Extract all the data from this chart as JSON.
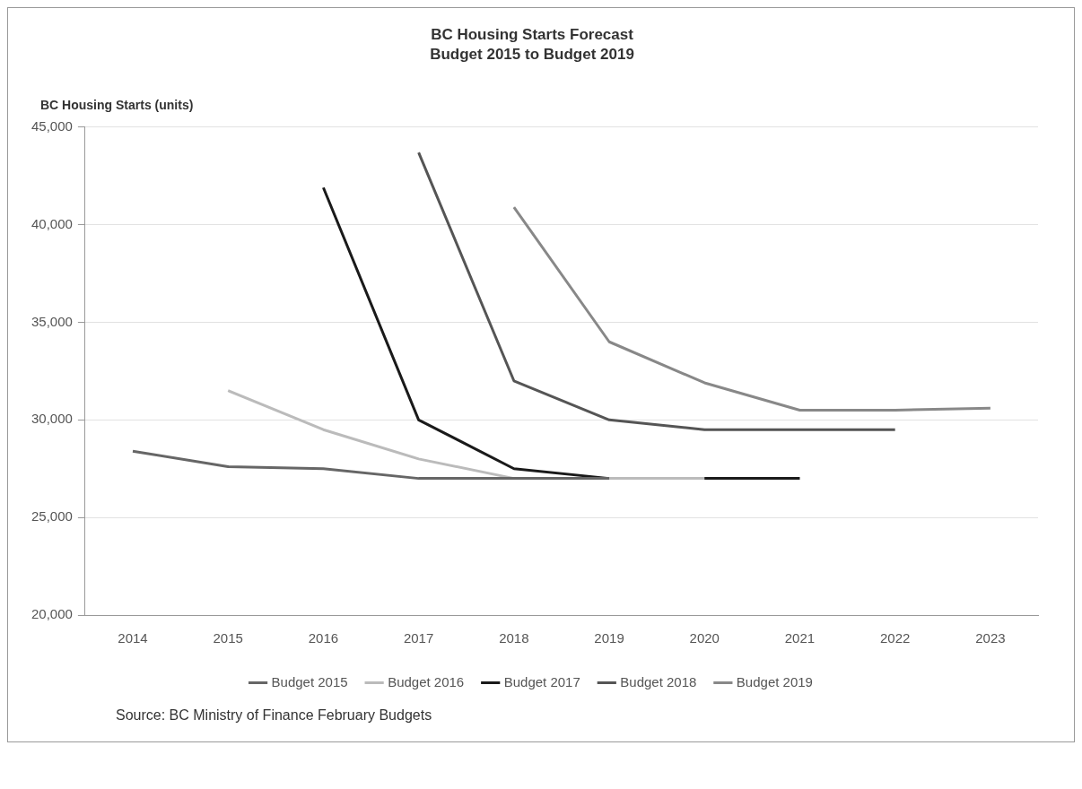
{
  "chart_data": {
    "type": "line",
    "title": "BC Housing Starts Forecast",
    "subtitle": "Budget 2015 to Budget 2019",
    "ylabel": "BC Housing Starts (units)",
    "categories": [
      "2014",
      "2015",
      "2016",
      "2017",
      "2018",
      "2019",
      "2020",
      "2021",
      "2022",
      "2023"
    ],
    "series": [
      {
        "name": "Budget 2015",
        "color": "#666666",
        "values": [
          28400,
          27600,
          27500,
          27000,
          27000,
          27000,
          null,
          null,
          null,
          null
        ]
      },
      {
        "name": "Budget 2016",
        "color": "#bbbbbb",
        "values": [
          null,
          31500,
          29500,
          28000,
          27000,
          27000,
          27000,
          null,
          null,
          null
        ]
      },
      {
        "name": "Budget 2017",
        "color": "#1a1a1a",
        "values": [
          null,
          null,
          41900,
          30000,
          27500,
          27000,
          27000,
          27000,
          null,
          null
        ]
      },
      {
        "name": "Budget 2018",
        "color": "#555555",
        "values": [
          null,
          null,
          null,
          43700,
          32000,
          30000,
          29500,
          29500,
          29500,
          null
        ]
      },
      {
        "name": "Budget 2019",
        "color": "#888888",
        "values": [
          null,
          null,
          null,
          null,
          40900,
          34000,
          31900,
          30500,
          30500,
          30600
        ]
      }
    ],
    "ylim": [
      20000,
      45000
    ],
    "yticks": [
      {
        "value": 20000,
        "label": "20,000"
      },
      {
        "value": 25000,
        "label": "25,000"
      },
      {
        "value": 30000,
        "label": "30,000"
      },
      {
        "value": 35000,
        "label": "35,000"
      },
      {
        "value": 40000,
        "label": "40,000"
      },
      {
        "value": 45000,
        "label": "45,000"
      }
    ],
    "grid": "y",
    "legend": "bottom",
    "marker": "none",
    "line_style": "solid",
    "annotations": [
      "Source: BC Ministry of Finance February Budgets"
    ]
  }
}
